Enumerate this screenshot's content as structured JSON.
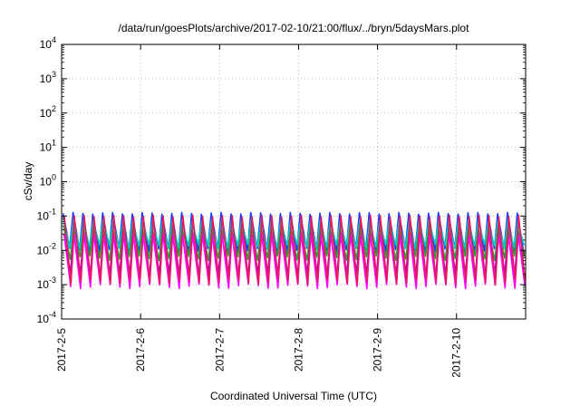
{
  "chart_data": {
    "type": "line",
    "title": "/data/run/goesPlots/archive/2017-02-10/21:00/flux/../bryn/5daysMars.plot",
    "xlabel": "Coordinated Universal Time (UTC)",
    "ylabel": "cSv/day",
    "yscale": "log",
    "ylim": [
      0.0001,
      10000
    ],
    "xlim": [
      "2017-02-05 00:00",
      "2017-02-10 21:00"
    ],
    "x_tick_labels": [
      "2017-2-5",
      "2017-2-6",
      "2017-2-7",
      "2017-2-8",
      "2017-2-9",
      "2017-2-10"
    ],
    "y_tick_labels": [
      {
        "base": "10",
        "exp": "-4"
      },
      {
        "base": "10",
        "exp": "-3"
      },
      {
        "base": "10",
        "exp": "-2"
      },
      {
        "base": "10",
        "exp": "-1"
      },
      {
        "base": "10",
        "exp": "0"
      },
      {
        "base": "10",
        "exp": "1"
      },
      {
        "base": "10",
        "exp": "2"
      },
      {
        "base": "10",
        "exp": "3"
      },
      {
        "base": "10",
        "exp": "4"
      }
    ],
    "grid": true,
    "legend": "none",
    "cycles_per_day": 8,
    "series": [
      {
        "color": "#1a3cff",
        "peak": 0.12,
        "trough": 0.01
      },
      {
        "color": "#00c8c8",
        "peak": 0.07,
        "trough": 0.013
      },
      {
        "color": "#2ca02c",
        "peak": 0.045,
        "trough": 0.006
      },
      {
        "color": "#9400d3",
        "peak": 0.03,
        "trough": 0.002
      },
      {
        "color": "#ff00ff",
        "peak": 0.03,
        "trough": 0.0009
      },
      {
        "color": "#e8195a",
        "peak": 0.1,
        "trough": 0.0012
      }
    ]
  }
}
